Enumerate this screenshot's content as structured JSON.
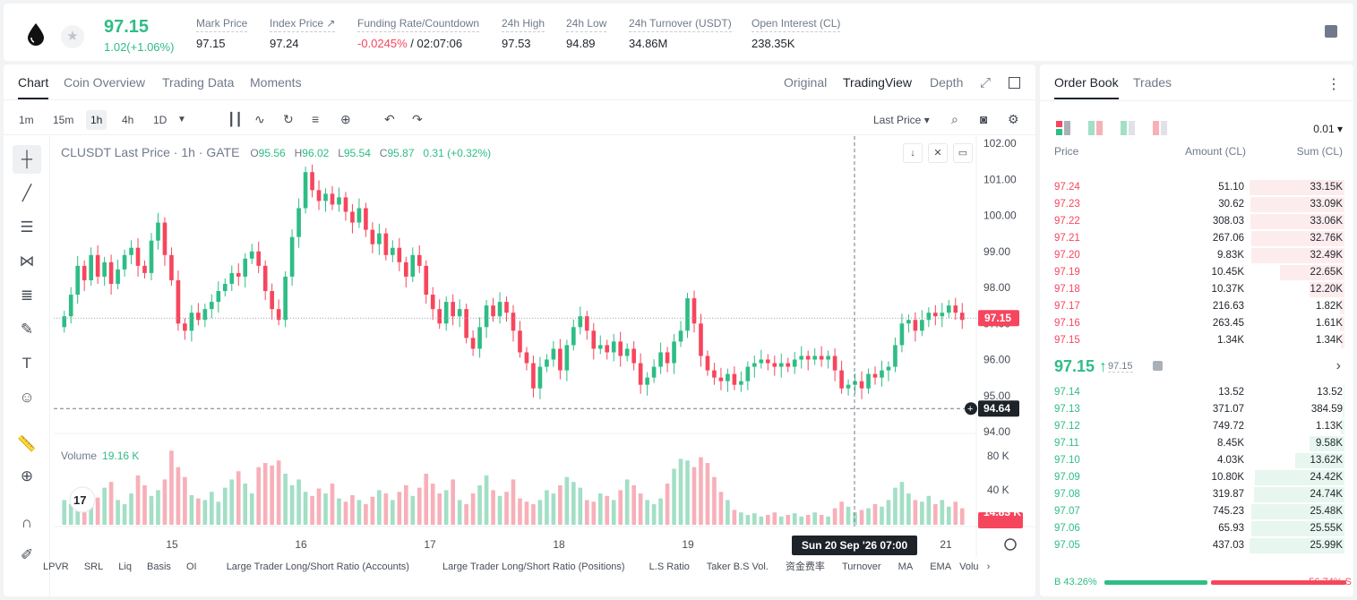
{
  "header": {
    "last_price": "97.15",
    "change": "1.02(+1.06%)",
    "stats": [
      {
        "label": "Mark Price",
        "value": "97.15"
      },
      {
        "label": "Index Price ↗",
        "value": "97.24"
      },
      {
        "label": "Funding Rate/Countdown",
        "value_neg": "-0.0245%",
        "value": " / 02:07:06"
      },
      {
        "label": "24h High",
        "value": "97.53"
      },
      {
        "label": "24h Low",
        "value": "94.89"
      },
      {
        "label": "24h Turnover (USDT)",
        "value": "34.86M"
      },
      {
        "label": "Open Interest (CL)",
        "value": "238.35K"
      }
    ]
  },
  "chart_tabs": [
    "Chart",
    "Coin Overview",
    "Trading Data",
    "Moments"
  ],
  "views": [
    "Original",
    "TradingView",
    "Depth"
  ],
  "timeframes": [
    "1m",
    "15m",
    "1h",
    "4h",
    "1D"
  ],
  "price_type": "Last Price ▾",
  "legend": {
    "symbol": "CLUSDT Last Price · 1h · GATE",
    "o": "95.56",
    "h": "96.02",
    "l": "95.54",
    "c": "95.87",
    "chg": "0.31 (+0.32%)"
  },
  "volume_legend": {
    "label": "Volume",
    "value": "19.16 K"
  },
  "chart_data": {
    "type": "candlestick",
    "y_ticks": [
      "102.00",
      "101.00",
      "100.00",
      "99.00",
      "98.00",
      "97.00",
      "96.00",
      "95.00",
      "94.00"
    ],
    "ylim": [
      94,
      102
    ],
    "x_ticks": [
      "15",
      "16",
      "17",
      "18",
      "19",
      "20",
      "21"
    ],
    "current_price_label": "97.15",
    "crosshair_price_label": "94.64",
    "crosshair_time_label": "Sun 20 Sep '26   07:00",
    "volume_ticks": [
      "80 K",
      "40 K"
    ],
    "volume_last_label": "14.83 K",
    "closes": [
      97.2,
      97.8,
      98.6,
      98.2,
      98.9,
      98.3,
      98.7,
      98.1,
      98.5,
      98.9,
      99.1,
      98.6,
      98.4,
      99.3,
      99.8,
      98.9,
      98.2,
      97.0,
      96.8,
      97.3,
      97.1,
      97.4,
      97.6,
      97.9,
      98.1,
      98.4,
      98.3,
      98.8,
      99.0,
      98.6,
      97.9,
      97.4,
      97.1,
      98.3,
      99.4,
      100.2,
      101.2,
      100.7,
      100.4,
      100.6,
      100.3,
      100.5,
      100.1,
      99.8,
      100.2,
      99.6,
      99.2,
      99.5,
      98.9,
      99.1,
      98.7,
      98.3,
      98.9,
      98.6,
      97.8,
      97.4,
      97.0,
      97.6,
      97.2,
      97.4,
      96.6,
      96.3,
      96.9,
      97.5,
      97.2,
      97.6,
      97.3,
      96.8,
      96.2,
      95.9,
      95.2,
      95.8,
      96.0,
      96.3,
      95.7,
      96.4,
      96.9,
      97.2,
      96.8,
      96.3,
      96.4,
      96.2,
      96.5,
      96.1,
      96.3,
      95.9,
      95.3,
      95.5,
      95.8,
      96.2,
      95.9,
      96.5,
      96.8,
      97.7,
      97.0,
      96.1,
      95.7,
      95.5,
      95.4,
      95.6,
      95.3,
      95.4,
      95.8,
      95.9,
      96.0,
      95.9,
      95.8,
      95.9,
      95.8,
      96.0,
      96.1,
      96.0,
      96.1,
      96.0,
      96.1,
      95.7,
      95.2,
      95.3,
      95.4,
      95.2,
      95.6,
      95.5,
      95.7,
      95.8,
      96.4,
      97.0,
      97.1,
      96.8,
      97.1,
      97.3,
      97.2,
      97.3,
      97.5,
      97.3,
      97.1
    ],
    "volumes": [
      30,
      25,
      40,
      35,
      28,
      33,
      45,
      52,
      30,
      25,
      38,
      60,
      48,
      35,
      42,
      55,
      90,
      70,
      58,
      36,
      32,
      30,
      40,
      28,
      45,
      55,
      65,
      50,
      38,
      70,
      75,
      72,
      78,
      62,
      48,
      55,
      40,
      35,
      44,
      38,
      50,
      32,
      28,
      36,
      30,
      25,
      34,
      42,
      38,
      30,
      40,
      48,
      35,
      45,
      62,
      50,
      38,
      42,
      55,
      30,
      25,
      38,
      48,
      60,
      42,
      35,
      40,
      55,
      32,
      28,
      25,
      30,
      42,
      38,
      48,
      58,
      52,
      45,
      30,
      28,
      38,
      35,
      30,
      42,
      55,
      48,
      38,
      30,
      25,
      32,
      50,
      68,
      80,
      78,
      70,
      82,
      75,
      58,
      40,
      30,
      18,
      15,
      12,
      14,
      10,
      12,
      15,
      10,
      12,
      14,
      10,
      12,
      15,
      12,
      10,
      20,
      28,
      22,
      15,
      18,
      20,
      25,
      22,
      30,
      45,
      52,
      38,
      30,
      28,
      35,
      25,
      30,
      22,
      28,
      20
    ],
    "colors": {
      "up": "#2ebd85",
      "down": "#f6465d",
      "up_vol": "#a3dfc6",
      "down_vol": "#f7b0b9"
    }
  },
  "indicators": [
    "LPVR",
    "SRL",
    "Liq",
    "Basis",
    "OI",
    "Large Trader Long/Short Ratio (Accounts)",
    "Large Trader Long/Short Ratio (Positions)",
    "L.S Ratio",
    "Taker B.S Vol.",
    "资金费率",
    "Turnover",
    "MA",
    "EMA",
    "Volu"
  ],
  "orderbook": {
    "tabs": [
      "Order Book",
      "Trades"
    ],
    "precision": "0.01 ▾",
    "headers": [
      "Price",
      "Amount (CL)",
      "Sum (CL)"
    ],
    "asks": [
      {
        "p": "97.24",
        "a": "51.10",
        "s": "33.15K",
        "w": 100
      },
      {
        "p": "97.23",
        "a": "30.62",
        "s": "33.09K",
        "w": 99
      },
      {
        "p": "97.22",
        "a": "308.03",
        "s": "33.06K",
        "w": 99
      },
      {
        "p": "97.21",
        "a": "267.06",
        "s": "32.76K",
        "w": 98
      },
      {
        "p": "97.20",
        "a": "9.83K",
        "s": "32.49K",
        "w": 98
      },
      {
        "p": "97.19",
        "a": "10.45K",
        "s": "22.65K",
        "w": 68
      },
      {
        "p": "97.18",
        "a": "10.37K",
        "s": "12.20K",
        "w": 37
      },
      {
        "p": "97.17",
        "a": "216.63",
        "s": "1.82K",
        "w": 5
      },
      {
        "p": "97.16",
        "a": "263.45",
        "s": "1.61K",
        "w": 5
      },
      {
        "p": "97.15",
        "a": "1.34K",
        "s": "1.34K",
        "w": 4
      }
    ],
    "mid": {
      "price": "97.15 ↑",
      "mark": "97.15"
    },
    "bids": [
      {
        "p": "97.14",
        "a": "13.52",
        "s": "13.52",
        "w": 1
      },
      {
        "p": "97.13",
        "a": "371.07",
        "s": "384.59",
        "w": 2
      },
      {
        "p": "97.12",
        "a": "749.72",
        "s": "1.13K",
        "w": 4
      },
      {
        "p": "97.11",
        "a": "8.45K",
        "s": "9.58K",
        "w": 37
      },
      {
        "p": "97.10",
        "a": "4.03K",
        "s": "13.62K",
        "w": 52
      },
      {
        "p": "97.09",
        "a": "10.80K",
        "s": "24.42K",
        "w": 94
      },
      {
        "p": "97.08",
        "a": "319.87",
        "s": "24.74K",
        "w": 95
      },
      {
        "p": "97.07",
        "a": "745.23",
        "s": "25.48K",
        "w": 98
      },
      {
        "p": "97.06",
        "a": "65.93",
        "s": "25.55K",
        "w": 98
      },
      {
        "p": "97.05",
        "a": "437.03",
        "s": "25.99K",
        "w": 100
      }
    ],
    "ratio": {
      "buy": "B 43.26%",
      "sell": "56.74% S",
      "buy_pct": 43.26
    }
  }
}
